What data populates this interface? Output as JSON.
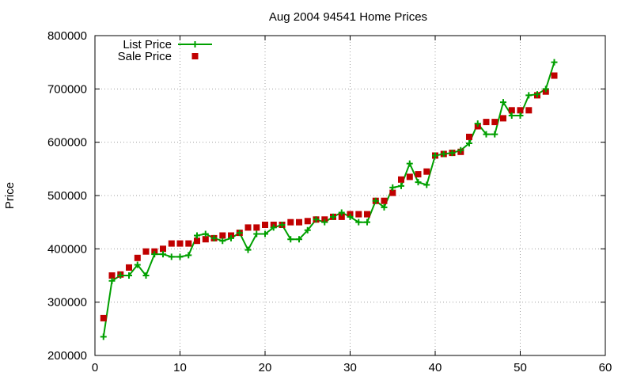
{
  "chart_data": {
    "type": "line",
    "title": "Aug 2004 94541 Home Prices",
    "xlabel": "",
    "ylabel": "Price",
    "xlim": [
      0,
      60
    ],
    "ylim": [
      200000,
      800000
    ],
    "x_ticks": [
      "0",
      "10",
      "20",
      "30",
      "40",
      "50",
      "60"
    ],
    "y_ticks": [
      "200000",
      "300000",
      "400000",
      "500000",
      "600000",
      "700000",
      "800000"
    ],
    "grid": true,
    "legend_position": "top-left",
    "series": [
      {
        "name": "List Price",
        "style": "lines+points",
        "color": "#00a000",
        "marker": "plus",
        "x": [
          1,
          2,
          3,
          4,
          5,
          6,
          7,
          8,
          9,
          10,
          11,
          12,
          13,
          14,
          15,
          16,
          17,
          18,
          19,
          20,
          21,
          22,
          23,
          24,
          25,
          26,
          27,
          28,
          29,
          30,
          31,
          32,
          33,
          34,
          35,
          36,
          37,
          38,
          39,
          40,
          41,
          42,
          43,
          44,
          45,
          46,
          47,
          48,
          49,
          50,
          51,
          52,
          53,
          54
        ],
        "y": [
          235000,
          340000,
          350000,
          350000,
          370000,
          350000,
          390000,
          390000,
          385000,
          385000,
          388000,
          425000,
          428000,
          420000,
          415000,
          420000,
          430000,
          398000,
          428000,
          428000,
          440000,
          445000,
          418000,
          418000,
          435000,
          455000,
          450000,
          460000,
          468000,
          460000,
          450000,
          450000,
          490000,
          478000,
          515000,
          518000,
          560000,
          525000,
          520000,
          575000,
          578000,
          580000,
          585000,
          598000,
          635000,
          615000,
          615000,
          675000,
          650000,
          650000,
          688000,
          690000,
          700000,
          750000
        ]
      },
      {
        "name": "Sale Price",
        "style": "points",
        "color": "#c00000",
        "marker": "square",
        "x": [
          1,
          2,
          3,
          4,
          5,
          6,
          7,
          8,
          9,
          10,
          11,
          12,
          13,
          14,
          15,
          16,
          17,
          18,
          19,
          20,
          21,
          22,
          23,
          24,
          25,
          26,
          27,
          28,
          29,
          30,
          31,
          32,
          33,
          34,
          35,
          36,
          37,
          38,
          39,
          40,
          41,
          42,
          43,
          44,
          45,
          46,
          47,
          48,
          49,
          50,
          51,
          52,
          53,
          54
        ],
        "y": [
          270000,
          350000,
          352000,
          365000,
          383000,
          395000,
          395000,
          400000,
          410000,
          410000,
          410000,
          415000,
          418000,
          420000,
          425000,
          425000,
          430000,
          440000,
          440000,
          445000,
          445000,
          445000,
          450000,
          450000,
          452000,
          455000,
          455000,
          460000,
          460000,
          465000,
          465000,
          465000,
          490000,
          490000,
          505000,
          530000,
          535000,
          540000,
          545000,
          575000,
          578000,
          580000,
          582000,
          610000,
          630000,
          638000,
          638000,
          645000,
          660000,
          660000,
          660000,
          688000,
          695000,
          725000
        ]
      }
    ]
  },
  "colors": {
    "list_price": "#00a000",
    "sale_price": "#c00000",
    "grid": "#a0a0a0",
    "axes": "#000000"
  }
}
